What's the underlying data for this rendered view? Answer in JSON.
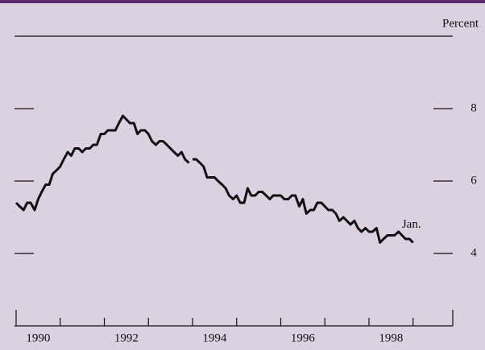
{
  "chart_data": {
    "type": "line",
    "y_label": "Percent",
    "annotation": "Jan.",
    "xlim": [
      1990,
      1999.9
    ],
    "xticks": [
      1990,
      1991,
      1992,
      1993,
      1994,
      1995,
      1996,
      1997,
      1998,
      1999
    ],
    "year_labels": [
      {
        "value": 1990.5,
        "label": "1990"
      },
      {
        "value": 1992.5,
        "label": "1992"
      },
      {
        "value": 1994.5,
        "label": "1994"
      },
      {
        "value": 1996.5,
        "label": "1996"
      },
      {
        "value": 1998.5,
        "label": "1998"
      }
    ],
    "ylim": [
      2,
      10
    ],
    "yticks": [
      4,
      6,
      8
    ],
    "series": [
      {
        "color": "#111111",
        "x": [
          1990,
          1990.08,
          1990.17,
          1990.25,
          1990.33,
          1990.42,
          1990.5,
          1990.58,
          1990.67,
          1990.75,
          1990.83,
          1990.92,
          1991,
          1991.08,
          1991.17,
          1991.25,
          1991.33,
          1991.42,
          1991.5,
          1991.58,
          1991.67,
          1991.75,
          1991.83,
          1991.92,
          1992,
          1992.08,
          1992.17,
          1992.25,
          1992.33,
          1992.42,
          1992.5,
          1992.58,
          1992.67,
          1992.75,
          1992.83,
          1992.92,
          1993,
          1993.08,
          1993.17,
          1993.25,
          1993.33,
          1993.42,
          1993.5,
          1993.58,
          1993.67,
          1993.75,
          1993.83,
          1993.92
        ],
        "values": [
          5.4,
          5.3,
          5.2,
          5.4,
          5.4,
          5.2,
          5.5,
          5.7,
          5.9,
          5.9,
          6.2,
          6.3,
          6.4,
          6.6,
          6.8,
          6.7,
          6.9,
          6.9,
          6.8,
          6.9,
          6.9,
          7.0,
          7.0,
          7.3,
          7.3,
          7.4,
          7.4,
          7.4,
          7.6,
          7.8,
          7.7,
          7.6,
          7.6,
          7.3,
          7.4,
          7.4,
          7.3,
          7.1,
          7.0,
          7.1,
          7.1,
          7.0,
          6.9,
          6.8,
          6.7,
          6.8,
          6.6,
          6.5
        ]
      },
      {
        "color": "#111111",
        "x": [
          1994,
          1994.08,
          1994.17,
          1994.25,
          1994.33,
          1994.42,
          1994.5,
          1994.58,
          1994.67,
          1994.75,
          1994.83,
          1994.92,
          1995,
          1995.08,
          1995.17,
          1995.25,
          1995.33,
          1995.42,
          1995.5,
          1995.58,
          1995.67,
          1995.75,
          1995.83,
          1995.92,
          1996,
          1996.08,
          1996.17,
          1996.25,
          1996.33,
          1996.42,
          1996.5,
          1996.58,
          1996.67,
          1996.75,
          1996.83,
          1996.92,
          1997,
          1997.08,
          1997.17,
          1997.25,
          1997.33,
          1997.42,
          1997.5,
          1997.58,
          1997.67,
          1997.75,
          1997.83,
          1997.92,
          1998,
          1998.08,
          1998.17,
          1998.25,
          1998.33,
          1998.42,
          1998.5,
          1998.58,
          1998.67,
          1998.75,
          1998.83,
          1998.92,
          1999
        ],
        "values": [
          6.6,
          6.6,
          6.5,
          6.4,
          6.1,
          6.1,
          6.1,
          6.0,
          5.9,
          5.8,
          5.6,
          5.5,
          5.6,
          5.4,
          5.4,
          5.8,
          5.6,
          5.6,
          5.7,
          5.7,
          5.6,
          5.5,
          5.6,
          5.6,
          5.6,
          5.5,
          5.5,
          5.6,
          5.6,
          5.3,
          5.5,
          5.1,
          5.2,
          5.2,
          5.4,
          5.4,
          5.3,
          5.2,
          5.2,
          5.1,
          4.9,
          5.0,
          4.9,
          4.8,
          4.9,
          4.7,
          4.6,
          4.7,
          4.6,
          4.6,
          4.7,
          4.3,
          4.4,
          4.5,
          4.5,
          4.5,
          4.6,
          4.5,
          4.4,
          4.4,
          4.3
        ]
      }
    ]
  }
}
